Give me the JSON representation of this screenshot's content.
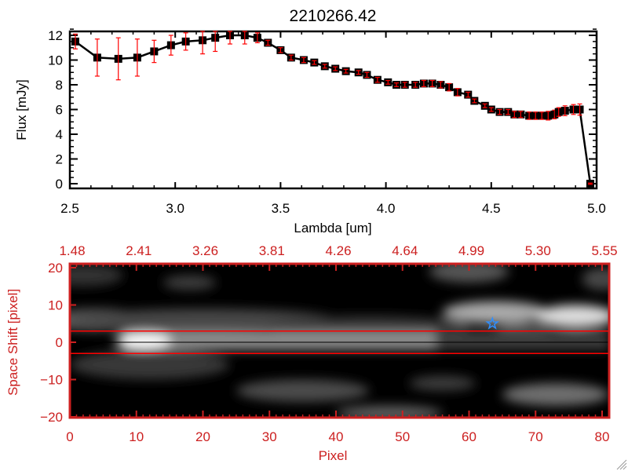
{
  "chart_data": [
    {
      "type": "line",
      "title": "2210266.42",
      "xlabel": "Lambda [um]",
      "ylabel": "Flux [mJy]",
      "xlim": [
        2.5,
        5.0
      ],
      "ylim": [
        -0.3,
        12.5
      ],
      "xticks": [
        "2.5",
        "3.0",
        "3.5",
        "4.0",
        "4.5",
        "5.0"
      ],
      "xtick_values": [
        2.5,
        3.0,
        3.5,
        4.0,
        4.5,
        5.0
      ],
      "yticks": [
        "0",
        "2",
        "4",
        "6",
        "8",
        "10",
        "12"
      ],
      "ytick_values": [
        0,
        2,
        4,
        6,
        8,
        10,
        12
      ],
      "series": [
        {
          "name": "flux",
          "color": "#000000",
          "errcolor": "#ff0000",
          "x": [
            2.526,
            2.63,
            2.73,
            2.82,
            2.9,
            2.98,
            3.05,
            3.13,
            3.19,
            3.26,
            3.33,
            3.39,
            3.44,
            3.5,
            3.55,
            3.61,
            3.66,
            3.71,
            3.76,
            3.81,
            3.87,
            3.91,
            3.96,
            4.01,
            4.05,
            4.09,
            4.14,
            4.18,
            4.22,
            4.26,
            4.3,
            4.34,
            4.39,
            4.42,
            4.47,
            4.5,
            4.54,
            4.58,
            4.61,
            4.64,
            4.68,
            4.71,
            4.74,
            4.77,
            4.8,
            4.82,
            4.85,
            4.89,
            4.92,
            4.97
          ],
          "y": [
            11.5,
            10.2,
            10.1,
            10.2,
            10.7,
            11.2,
            11.5,
            11.6,
            11.8,
            12.0,
            12.0,
            11.8,
            11.4,
            10.8,
            10.2,
            10.0,
            9.8,
            9.5,
            9.3,
            9.1,
            9.0,
            8.8,
            8.4,
            8.2,
            8.0,
            8.0,
            8.0,
            8.1,
            8.1,
            8.0,
            7.8,
            7.4,
            7.2,
            6.7,
            6.3,
            6.0,
            5.8,
            5.8,
            5.6,
            5.6,
            5.5,
            5.5,
            5.5,
            5.5,
            5.6,
            5.8,
            5.9,
            6.0,
            6.0,
            0.0
          ],
          "err": [
            0.6,
            1.5,
            1.7,
            1.5,
            0.9,
            0.8,
            0.7,
            1.1,
            1.1,
            0.7,
            0.7,
            0.4,
            0.2,
            0.2,
            0.2,
            0.2,
            0.15,
            0.15,
            0.15,
            0.15,
            0.15,
            0.2,
            0.2,
            0.15,
            0.15,
            0.2,
            0.2,
            0.25,
            0.25,
            0.25,
            0.3,
            0.3,
            0.2,
            0.15,
            0.15,
            0.15,
            0.2,
            0.2,
            0.25,
            0.25,
            0.3,
            0.3,
            0.3,
            0.35,
            0.35,
            0.35,
            0.4,
            0.4,
            0.45,
            0.05
          ]
        }
      ]
    },
    {
      "type": "heatmap",
      "xlabel": "Pixel",
      "ylabel": "Space Shift [pixel]",
      "xlim": [
        0,
        81
      ],
      "ylim": [
        -21,
        21
      ],
      "xticks": [
        "0",
        "10",
        "20",
        "30",
        "40",
        "50",
        "60",
        "70",
        "80"
      ],
      "xtick_values": [
        0,
        10,
        20,
        30,
        40,
        50,
        60,
        70,
        80
      ],
      "yticks": [
        "-20",
        "-10",
        "0",
        "10",
        "20"
      ],
      "ytick_values": [
        -20,
        -10,
        0,
        10,
        20
      ],
      "top_xticks": [
        "1.48",
        "2.41",
        "3.26",
        "3.81",
        "4.26",
        "4.64",
        "4.99",
        "5.30",
        "5.55"
      ],
      "aperture_lines": [
        3,
        -3
      ],
      "center_line": 0,
      "star_marker": {
        "x": 63.5,
        "y": 5,
        "color": "#2f8fff"
      },
      "axis_color": "#cc2020",
      "aperture_color": "#ff0000"
    }
  ]
}
